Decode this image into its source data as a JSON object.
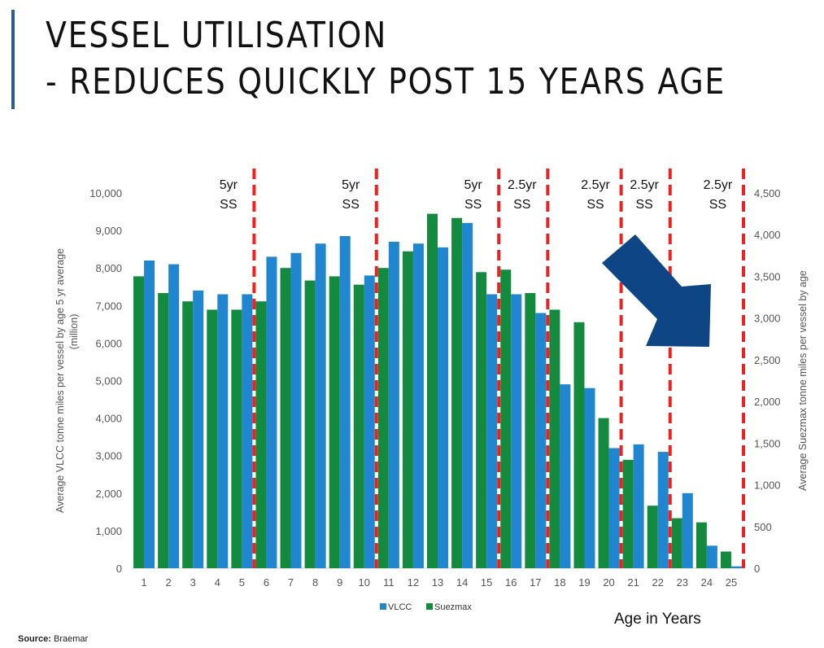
{
  "slide": {
    "title_line1": "VESSEL UTILISATION",
    "title_line2": "- REDUCES QUICKLY POST 15 YEARS AGE",
    "source_label": "Source:",
    "source_value": "Braemar",
    "accent_color": "#2e5e8c"
  },
  "chart_data": {
    "type": "bar",
    "x_title": "Age in Years",
    "categories": [
      "1",
      "2",
      "3",
      "4",
      "5",
      "6",
      "7",
      "8",
      "9",
      "10",
      "11",
      "12",
      "13",
      "14",
      "15",
      "16",
      "17",
      "18",
      "19",
      "20",
      "21",
      "22",
      "23",
      "24",
      "25"
    ],
    "series": [
      {
        "name": "VLCC",
        "axis": "left",
        "color": "#1f86cf",
        "values": [
          8200,
          8100,
          7400,
          7300,
          7300,
          8300,
          8400,
          8650,
          8850,
          7800,
          8700,
          8650,
          8550,
          9200,
          7300,
          7300,
          6800,
          4900,
          4800,
          3200,
          3300,
          3100,
          2000,
          600,
          50
        ]
      },
      {
        "name": "Suezmax",
        "axis": "right",
        "color": "#138a3e",
        "values": [
          3500,
          3300,
          3200,
          3100,
          3100,
          3200,
          3600,
          3450,
          3500,
          3400,
          3600,
          3800,
          4250,
          4200,
          3550,
          3580,
          3300,
          3100,
          2950,
          1800,
          1300,
          750,
          600,
          550,
          200
        ]
      }
    ],
    "y_left": {
      "label_line1": "Average VLCC tonne miles per vessel by age 5 yr average",
      "label_line2": "(million)",
      "min": 0,
      "max": 10000,
      "ticks": [
        "0",
        "1,000",
        "2,000",
        "3,000",
        "4,000",
        "5,000",
        "6,000",
        "7,000",
        "8,000",
        "9,000",
        "10,000"
      ]
    },
    "y_right": {
      "label": "Average Suezmax tonne miles per vessel by age",
      "min": 0,
      "max": 4500,
      "ticks": [
        "0",
        "500",
        "1,000",
        "1,500",
        "2,000",
        "2,500",
        "3,000",
        "3,500",
        "4,000",
        "4,500"
      ]
    },
    "markers": [
      {
        "after_age": 5,
        "line1": "5yr",
        "line2": "SS"
      },
      {
        "after_age": 10,
        "line1": "5yr",
        "line2": "SS"
      },
      {
        "after_age": 15,
        "line1": "5yr",
        "line2": "SS"
      },
      {
        "after_age": 17,
        "line1": "2.5yr",
        "line2": "SS"
      },
      {
        "after_age": 20,
        "line1": "2.5yr",
        "line2": "SS"
      },
      {
        "after_age": 22,
        "line1": "2.5yr",
        "line2": "SS"
      },
      {
        "after_age": 25,
        "line1": "2.5yr",
        "line2": "SS"
      }
    ],
    "marker_color": "#ee2020",
    "arrow": {
      "color": "#0d4585",
      "direction": "down-right"
    },
    "legend": {
      "position": "bottom-center"
    }
  }
}
